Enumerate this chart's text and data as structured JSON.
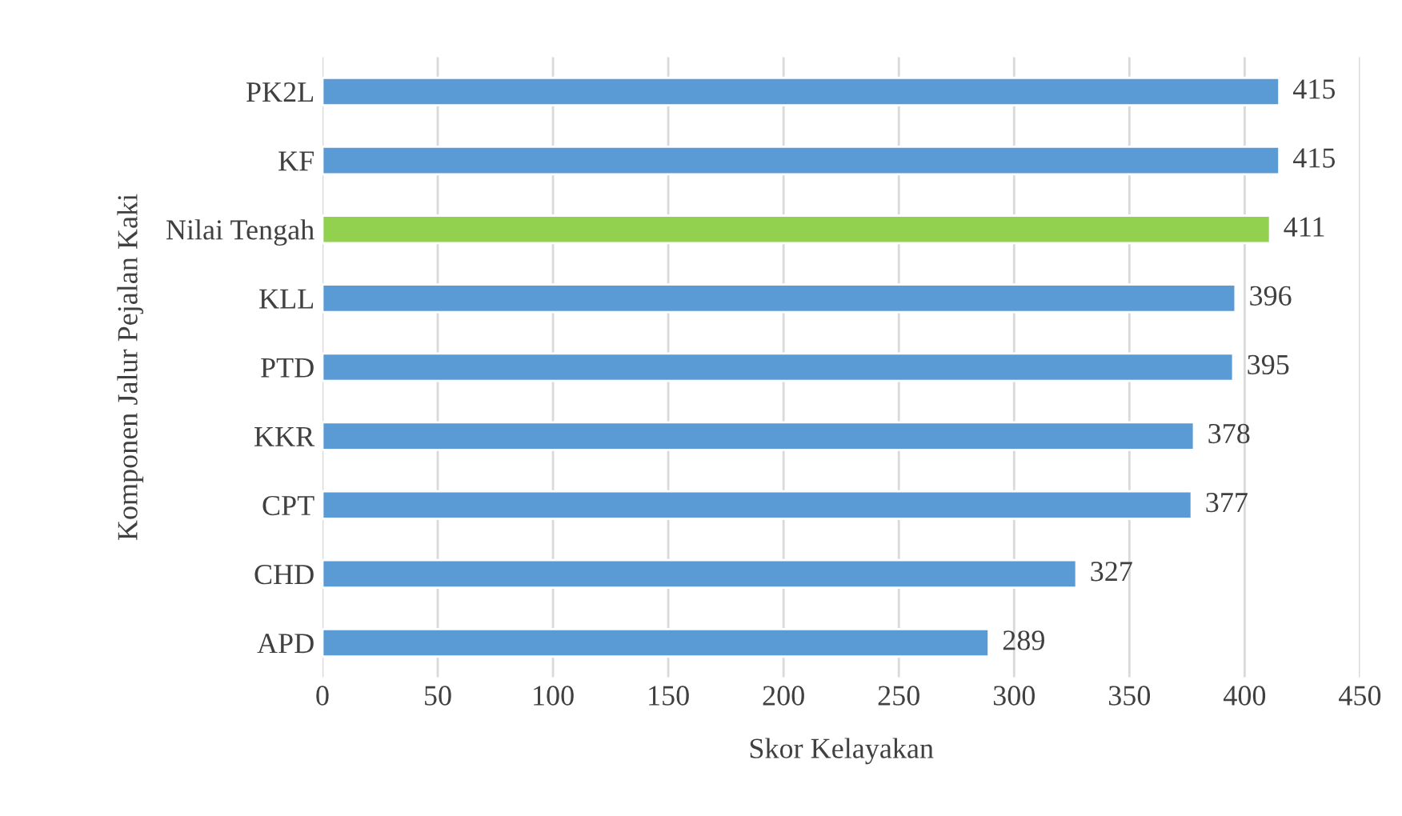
{
  "chart_data": {
    "type": "bar",
    "orientation": "horizontal",
    "xlabel": "Skor Kelayakan",
    "ylabel": "Komponen Jalur Pejalan Kaki",
    "categories": [
      "PK2L",
      "KF",
      "Nilai Tengah",
      "KLL",
      "PTD",
      "KKR",
      "CPT",
      "CHD",
      "APD"
    ],
    "values": [
      415,
      415,
      411,
      396,
      395,
      378,
      377,
      327,
      289
    ],
    "colors": [
      "#5b9bd5",
      "#5b9bd5",
      "#92d050",
      "#5b9bd5",
      "#5b9bd5",
      "#5b9bd5",
      "#5b9bd5",
      "#5b9bd5",
      "#5b9bd5"
    ],
    "xlim": [
      0,
      450
    ],
    "xticks": [
      0,
      50,
      100,
      150,
      200,
      250,
      300,
      350,
      400,
      450
    ],
    "grid": "x",
    "data_labels": true,
    "legend": false
  }
}
